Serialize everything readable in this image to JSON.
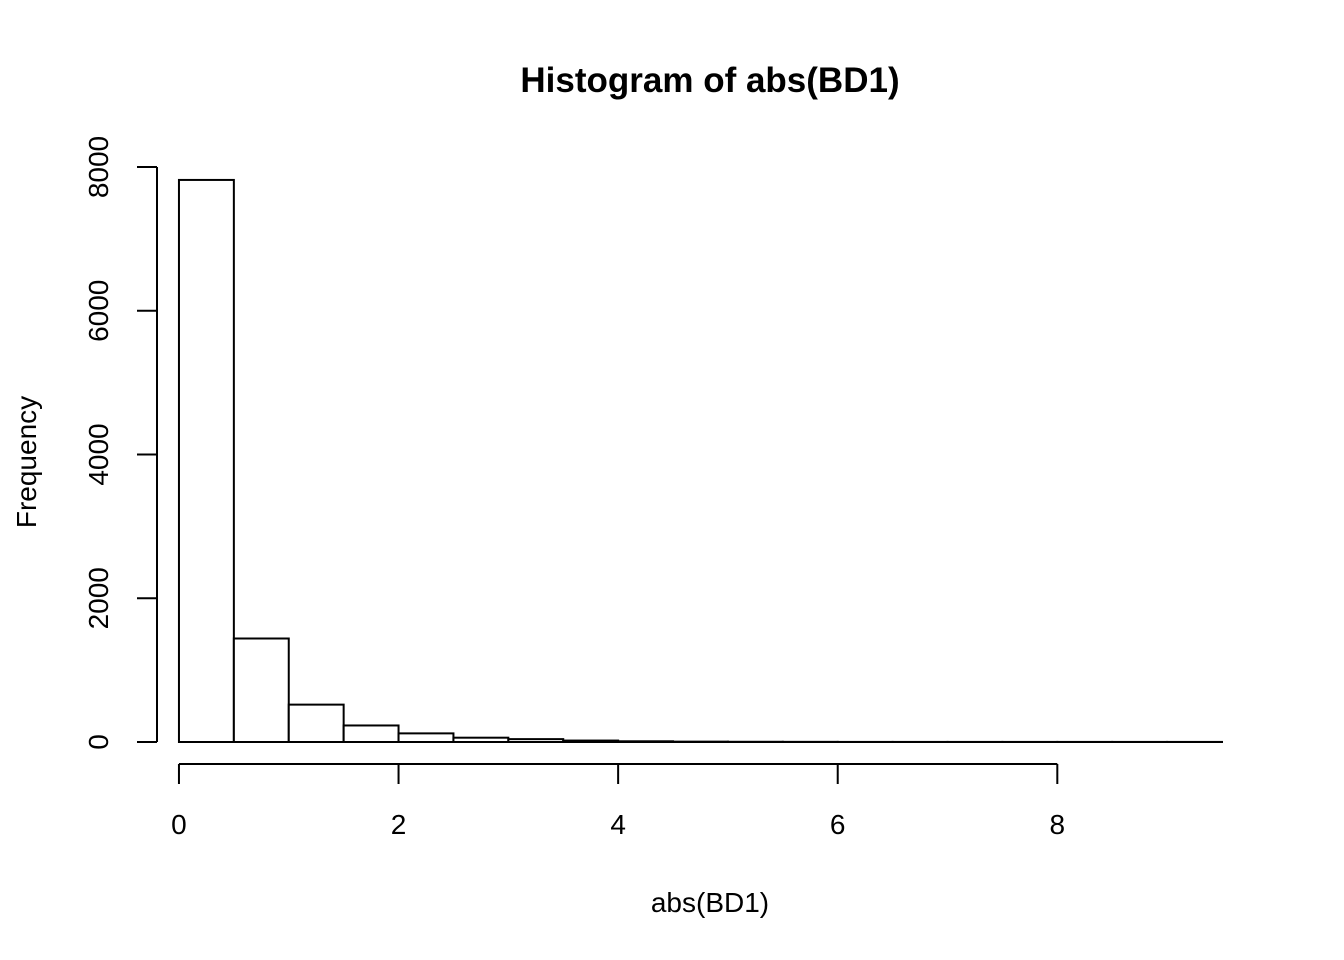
{
  "chart_data": {
    "type": "bar",
    "title": "Histogram of abs(BD1)",
    "xlabel": "abs(BD1)",
    "ylabel": "Frequency",
    "bin_width": 0.5,
    "bin_start": 0,
    "values": [
      7820,
      1440,
      520,
      230,
      120,
      60,
      40,
      20,
      10,
      5,
      3,
      2,
      1,
      1,
      1,
      1,
      1,
      1,
      1
    ],
    "xlim": [
      -0.2,
      9.5
    ],
    "ylim": [
      0,
      8000
    ],
    "xticks": [
      0,
      2,
      4,
      6,
      8
    ],
    "yticks": [
      0,
      2000,
      4000,
      6000,
      8000
    ],
    "grid": false,
    "legend": "none",
    "colors": {
      "bar_fill": "#ffffff",
      "bar_stroke": "#000000"
    }
  }
}
